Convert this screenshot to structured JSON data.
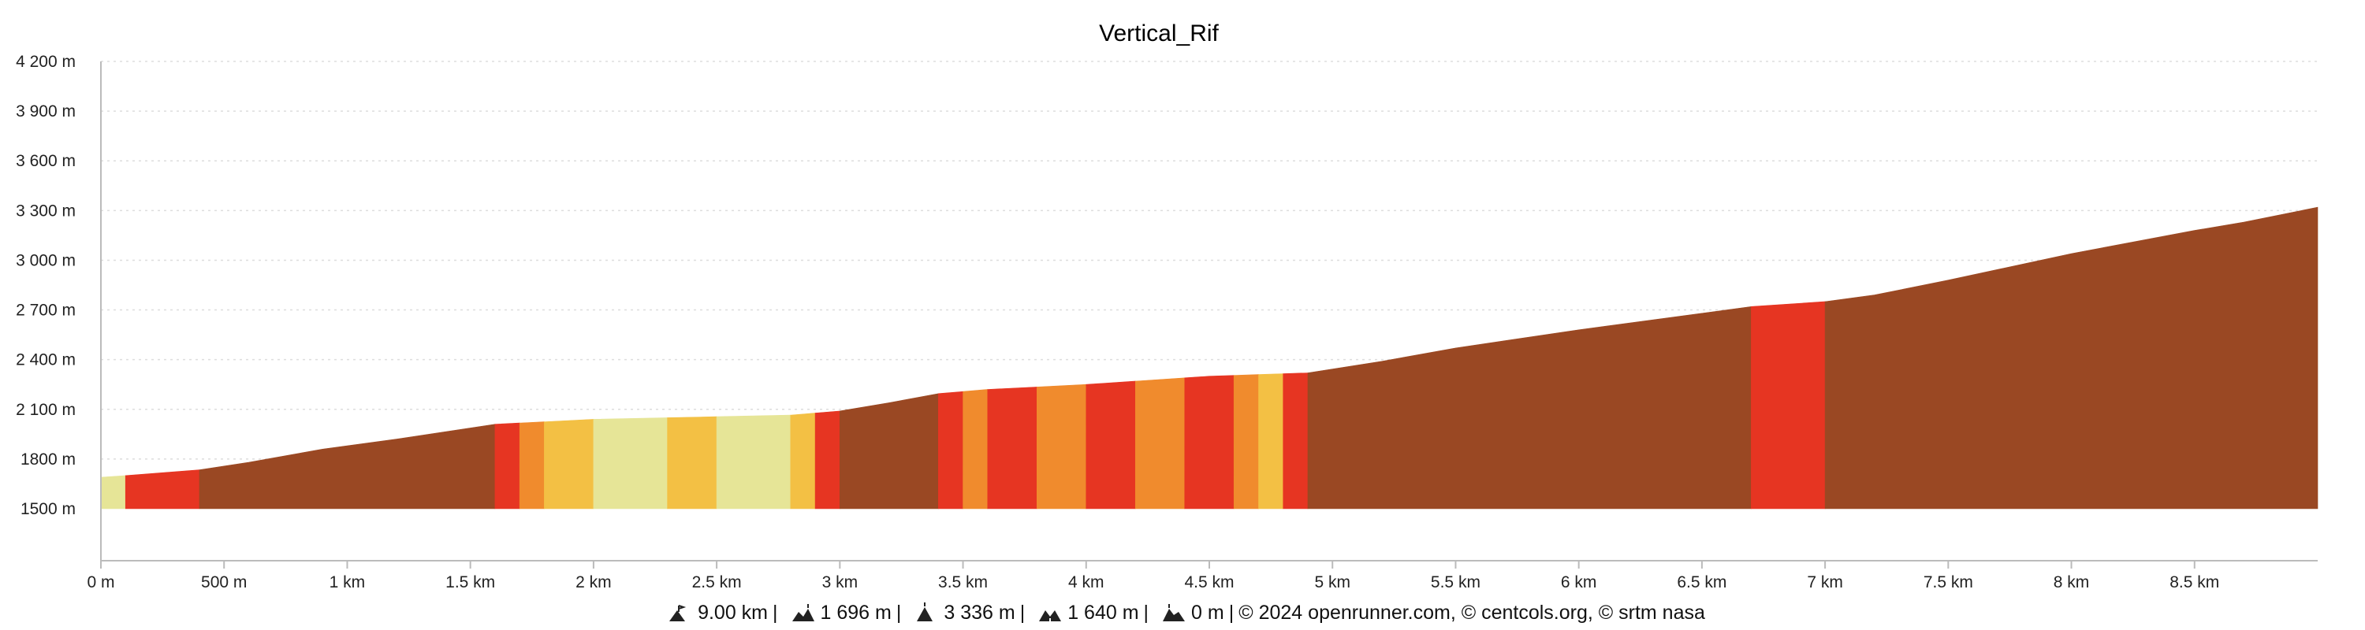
{
  "chart_data": {
    "type": "area",
    "title": "Vertical_Rif",
    "xlabel": "",
    "ylabel": "",
    "x_unit": "m",
    "y_unit": "m",
    "xlim": [
      0,
      9000
    ],
    "ylim": [
      1500,
      4200
    ],
    "x_ticks": [
      0,
      500,
      1000,
      1500,
      2000,
      2500,
      3000,
      3500,
      4000,
      4500,
      5000,
      5500,
      6000,
      6500,
      7000,
      7500,
      8000,
      8500
    ],
    "x_tick_labels": [
      "0 m",
      "500 m",
      "1 km",
      "1.5 km",
      "2 km",
      "2.5 km",
      "3 km",
      "3.5 km",
      "4 km",
      "4.5 km",
      "5 km",
      "5.5 km",
      "6 km",
      "6.5 km",
      "7 km",
      "7.5 km",
      "8 km",
      "8.5 km"
    ],
    "y_ticks": [
      1500,
      1800,
      2100,
      2400,
      2700,
      3000,
      3300,
      3600,
      3900,
      4200
    ],
    "y_tick_labels": [
      "1500 m",
      "1800 m",
      "2 100 m",
      "2 400 m",
      "2 700 m",
      "3 000 m",
      "3 300 m",
      "3 600 m",
      "3 900 m",
      "4 200 m"
    ],
    "grid": true,
    "profile": {
      "x": [
        0,
        100,
        400,
        600,
        900,
        1200,
        1600,
        2000,
        2800,
        3000,
        3200,
        3400,
        3600,
        4000,
        4500,
        4900,
        5200,
        5500,
        6000,
        6500,
        6700,
        7000,
        7200,
        7500,
        8000,
        8500,
        8700,
        9000
      ],
      "y": [
        1690,
        1700,
        1735,
        1780,
        1860,
        1920,
        2010,
        2040,
        2065,
        2090,
        2140,
        2195,
        2220,
        2250,
        2300,
        2320,
        2390,
        2470,
        2580,
        2680,
        2720,
        2750,
        2790,
        2880,
        3040,
        3180,
        3230,
        3320
      ]
    },
    "segments": [
      {
        "from": 0,
        "to": 100,
        "color": "#e6e597"
      },
      {
        "from": 100,
        "to": 400,
        "color": "#e63522"
      },
      {
        "from": 400,
        "to": 1600,
        "color": "#9a4823"
      },
      {
        "from": 1600,
        "to": 1700,
        "color": "#e63522"
      },
      {
        "from": 1700,
        "to": 1800,
        "color": "#f08b2d"
      },
      {
        "from": 1800,
        "to": 2000,
        "color": "#f3c044"
      },
      {
        "from": 2000,
        "to": 2300,
        "color": "#e6e597"
      },
      {
        "from": 2300,
        "to": 2500,
        "color": "#f3c044"
      },
      {
        "from": 2500,
        "to": 2800,
        "color": "#e6e597"
      },
      {
        "from": 2800,
        "to": 2900,
        "color": "#f3c044"
      },
      {
        "from": 2900,
        "to": 3000,
        "color": "#e63522"
      },
      {
        "from": 3000,
        "to": 3400,
        "color": "#9a4823"
      },
      {
        "from": 3400,
        "to": 3500,
        "color": "#e63522"
      },
      {
        "from": 3500,
        "to": 3600,
        "color": "#f08b2d"
      },
      {
        "from": 3600,
        "to": 3800,
        "color": "#e63522"
      },
      {
        "from": 3800,
        "to": 4000,
        "color": "#f08b2d"
      },
      {
        "from": 4000,
        "to": 4200,
        "color": "#e63522"
      },
      {
        "from": 4200,
        "to": 4400,
        "color": "#f08b2d"
      },
      {
        "from": 4400,
        "to": 4600,
        "color": "#e63522"
      },
      {
        "from": 4600,
        "to": 4700,
        "color": "#f08b2d"
      },
      {
        "from": 4700,
        "to": 4800,
        "color": "#f3c044"
      },
      {
        "from": 4800,
        "to": 4900,
        "color": "#e63522"
      },
      {
        "from": 4900,
        "to": 6700,
        "color": "#9a4823"
      },
      {
        "from": 6700,
        "to": 7000,
        "color": "#e63522"
      },
      {
        "from": 7000,
        "to": 9000,
        "color": "#9a4823"
      }
    ]
  },
  "footer": {
    "distance": "9.00 km",
    "elevation_gain": "1 696 m",
    "max_altitude": "3 336 m",
    "min_altitude": "1 640 m",
    "elevation_loss": "0 m",
    "copyright": "© 2024 openrunner.com, © centcols.org, © srtm nasa",
    "separator": "|"
  },
  "colors": {
    "background": "#ffffff",
    "grid": "#dddddd",
    "axis": "#bbbbbb",
    "text": "#111111"
  }
}
